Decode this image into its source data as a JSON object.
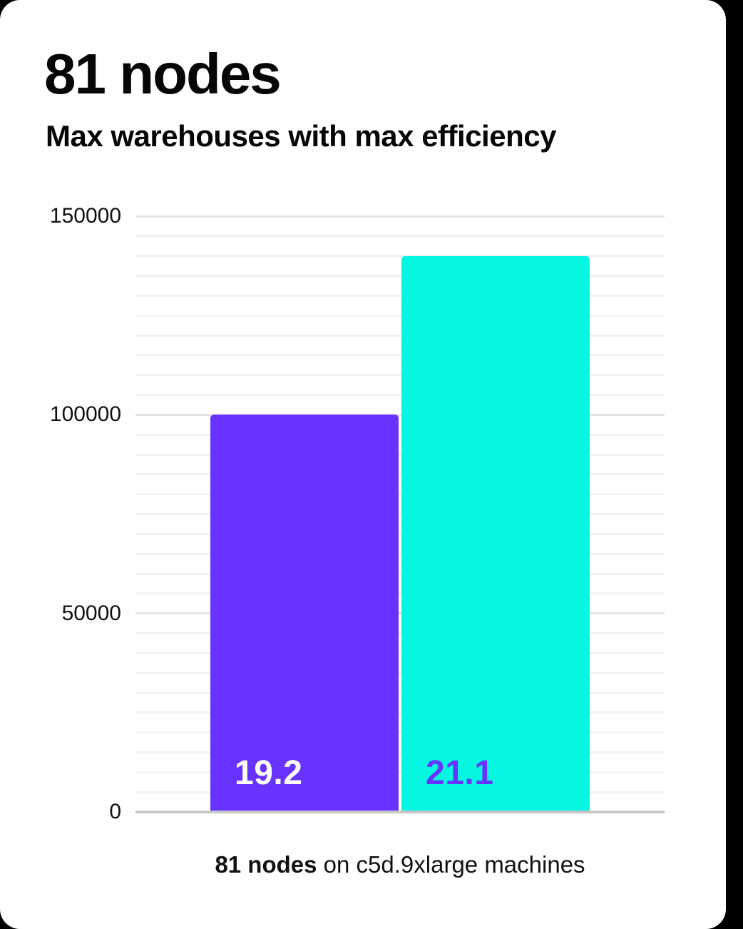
{
  "theme": {
    "page_background": "#000000",
    "card_background": "#FFFFFF",
    "text_color": "#060606",
    "accent_purple": "#6933FF",
    "accent_cyan": "#05F6E1"
  },
  "chart_data": {
    "type": "bar",
    "title": "81 nodes",
    "subtitle": "Max warehouses with max efficiency",
    "categories": [
      "19.2",
      "21.1"
    ],
    "values": [
      100000,
      140000
    ],
    "bars": [
      {
        "label": "19.2",
        "value": 100000,
        "color": "#6933FF",
        "label_color": "#FFFFFF"
      },
      {
        "label": "21.1",
        "value": 140000,
        "color": "#05F6E1",
        "label_color": "#6933FF"
      }
    ],
    "xlabel": "",
    "ylabel": "",
    "ylim": [
      0,
      150000
    ],
    "yticks": [
      0,
      50000,
      100000,
      150000
    ],
    "grid": {
      "on": true,
      "minor_step": 5000,
      "major_step": 50000,
      "minor_color": "#F2F2F2",
      "major_color": "#E4E4E4"
    },
    "axis_color": "#C6C6C6",
    "legend_position": "none",
    "caption": {
      "bold": "81 nodes",
      "rest": " on c5d.9xlarge machines"
    }
  }
}
